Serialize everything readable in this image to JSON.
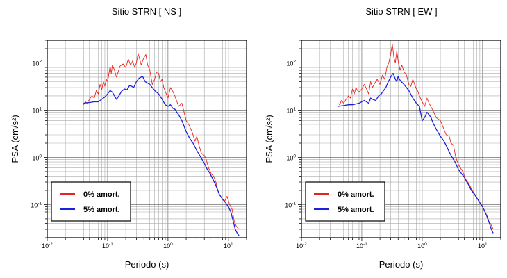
{
  "chart_data": [
    {
      "type": "line",
      "title": "Sitio STRN [ NS ]",
      "xlabel": "Periodo (s)",
      "ylabel": "PSA (cm/s²)",
      "x_scale": "log",
      "y_scale": "log",
      "xlim": [
        0.01,
        20
      ],
      "ylim": [
        0.02,
        300
      ],
      "x_ticks": [
        0.01,
        0.1,
        1,
        10
      ],
      "x_tick_labels": [
        {
          "base": "10",
          "exp": "-2"
        },
        {
          "base": "10",
          "exp": "-1"
        },
        {
          "base": "10",
          "exp": "0"
        },
        {
          "base": "10",
          "exp": "1"
        }
      ],
      "y_ticks": [
        0.1,
        1,
        10,
        100
      ],
      "y_tick_labels": [
        {
          "base": "10",
          "exp": "-1"
        },
        {
          "base": "10",
          "exp": "0"
        },
        {
          "base": "10",
          "exp": "1"
        },
        {
          "base": "10",
          "exp": "2"
        }
      ],
      "grid": true,
      "legend_position": "bottom-left",
      "series": [
        {
          "name": "0% amort.",
          "color": "#e8231f",
          "points": [
            [
              0.04,
              13
            ],
            [
              0.043,
              15
            ],
            [
              0.046,
              14
            ],
            [
              0.05,
              17
            ],
            [
              0.055,
              20
            ],
            [
              0.06,
              18
            ],
            [
              0.065,
              26
            ],
            [
              0.07,
              22
            ],
            [
              0.075,
              35
            ],
            [
              0.08,
              27
            ],
            [
              0.085,
              40
            ],
            [
              0.09,
              32
            ],
            [
              0.095,
              45
            ],
            [
              0.1,
              40
            ],
            [
              0.11,
              85
            ],
            [
              0.115,
              60
            ],
            [
              0.12,
              90
            ],
            [
              0.13,
              70
            ],
            [
              0.14,
              50
            ],
            [
              0.15,
              65
            ],
            [
              0.16,
              85
            ],
            [
              0.18,
              95
            ],
            [
              0.2,
              80
            ],
            [
              0.22,
              120
            ],
            [
              0.24,
              90
            ],
            [
              0.26,
              110
            ],
            [
              0.28,
              80
            ],
            [
              0.3,
              100
            ],
            [
              0.32,
              160
            ],
            [
              0.34,
              120
            ],
            [
              0.36,
              90
            ],
            [
              0.38,
              110
            ],
            [
              0.4,
              130
            ],
            [
              0.43,
              150
            ],
            [
              0.46,
              90
            ],
            [
              0.5,
              70
            ],
            [
              0.55,
              35
            ],
            [
              0.6,
              45
            ],
            [
              0.65,
              65
            ],
            [
              0.7,
              60
            ],
            [
              0.75,
              40
            ],
            [
              0.8,
              45
            ],
            [
              0.85,
              30
            ],
            [
              0.9,
              25
            ],
            [
              1.0,
              18
            ],
            [
              1.1,
              30
            ],
            [
              1.2,
              25
            ],
            [
              1.3,
              20
            ],
            [
              1.5,
              12
            ],
            [
              1.7,
              14
            ],
            [
              2.0,
              6
            ],
            [
              2.2,
              5
            ],
            [
              2.5,
              3.5
            ],
            [
              2.8,
              2.2
            ],
            [
              3.0,
              2.8
            ],
            [
              3.3,
              1.7
            ],
            [
              3.6,
              1.2
            ],
            [
              4.0,
              1.1
            ],
            [
              4.3,
              0.9
            ],
            [
              4.7,
              0.6
            ],
            [
              5.2,
              0.45
            ],
            [
              5.7,
              0.4
            ],
            [
              6.2,
              0.3
            ],
            [
              6.7,
              0.2
            ],
            [
              7.2,
              0.16
            ],
            [
              8.0,
              0.13
            ],
            [
              8.7,
              0.12
            ],
            [
              9.5,
              0.15
            ],
            [
              10.5,
              0.1
            ],
            [
              11.5,
              0.08
            ],
            [
              12.5,
              0.045
            ],
            [
              13.5,
              0.035
            ],
            [
              15,
              0.03
            ]
          ]
        },
        {
          "name": "5% amort.",
          "color": "#1c20d8",
          "points": [
            [
              0.04,
              14
            ],
            [
              0.05,
              14.5
            ],
            [
              0.06,
              15
            ],
            [
              0.07,
              15
            ],
            [
              0.08,
              17
            ],
            [
              0.09,
              19
            ],
            [
              0.1,
              22
            ],
            [
              0.11,
              26
            ],
            [
              0.12,
              24
            ],
            [
              0.13,
              20
            ],
            [
              0.14,
              17
            ],
            [
              0.15,
              19
            ],
            [
              0.17,
              25
            ],
            [
              0.19,
              28
            ],
            [
              0.21,
              27
            ],
            [
              0.23,
              33
            ],
            [
              0.25,
              32
            ],
            [
              0.27,
              30
            ],
            [
              0.3,
              40
            ],
            [
              0.33,
              47
            ],
            [
              0.36,
              50
            ],
            [
              0.38,
              52
            ],
            [
              0.4,
              45
            ],
            [
              0.42,
              40
            ],
            [
              0.45,
              38
            ],
            [
              0.5,
              35
            ],
            [
              0.55,
              30
            ],
            [
              0.6,
              26
            ],
            [
              0.7,
              22
            ],
            [
              0.8,
              17
            ],
            [
              0.9,
              13
            ],
            [
              1.0,
              12
            ],
            [
              1.1,
              13
            ],
            [
              1.2,
              11
            ],
            [
              1.3,
              10.5
            ],
            [
              1.4,
              9
            ],
            [
              1.5,
              8
            ],
            [
              1.7,
              6
            ],
            [
              2.0,
              3.5
            ],
            [
              2.3,
              2.5
            ],
            [
              2.6,
              2
            ],
            [
              3.0,
              1.4
            ],
            [
              3.5,
              1.0
            ],
            [
              4.0,
              0.75
            ],
            [
              4.5,
              0.55
            ],
            [
              5.0,
              0.45
            ],
            [
              5.5,
              0.35
            ],
            [
              6.0,
              0.28
            ],
            [
              6.5,
              0.22
            ],
            [
              7.0,
              0.17
            ],
            [
              8.0,
              0.13
            ],
            [
              9.0,
              0.11
            ],
            [
              10.0,
              0.09
            ],
            [
              11.0,
              0.07
            ],
            [
              12.0,
              0.045
            ],
            [
              13.0,
              0.03
            ],
            [
              14.0,
              0.025
            ],
            [
              15,
              0.022
            ]
          ]
        }
      ]
    },
    {
      "type": "line",
      "title": "Sitio STRN [ EW ]",
      "xlabel": "Periodo (s)",
      "ylabel": "PSA (cm/s²)",
      "x_scale": "log",
      "y_scale": "log",
      "xlim": [
        0.01,
        20
      ],
      "ylim": [
        0.02,
        300
      ],
      "x_ticks": [
        0.01,
        0.1,
        1,
        10
      ],
      "x_tick_labels": [
        {
          "base": "10",
          "exp": "-2"
        },
        {
          "base": "10",
          "exp": "-1"
        },
        {
          "base": "10",
          "exp": "0"
        },
        {
          "base": "10",
          "exp": "1"
        }
      ],
      "y_ticks": [
        0.1,
        1,
        10,
        100
      ],
      "y_tick_labels": [
        {
          "base": "10",
          "exp": "-1"
        },
        {
          "base": "10",
          "exp": "0"
        },
        {
          "base": "10",
          "exp": "1"
        },
        {
          "base": "10",
          "exp": "2"
        }
      ],
      "grid": true,
      "legend_position": "bottom-left",
      "series": [
        {
          "name": "0% amort.",
          "color": "#e8231f",
          "points": [
            [
              0.04,
              14
            ],
            [
              0.043,
              13
            ],
            [
              0.046,
              16
            ],
            [
              0.05,
              14
            ],
            [
              0.055,
              17
            ],
            [
              0.06,
              20
            ],
            [
              0.065,
              18
            ],
            [
              0.07,
              28
            ],
            [
              0.075,
              22
            ],
            [
              0.08,
              30
            ],
            [
              0.085,
              26
            ],
            [
              0.09,
              24
            ],
            [
              0.1,
              28
            ],
            [
              0.11,
              35
            ],
            [
              0.12,
              28
            ],
            [
              0.13,
              22
            ],
            [
              0.14,
              40
            ],
            [
              0.15,
              30
            ],
            [
              0.16,
              35
            ],
            [
              0.18,
              45
            ],
            [
              0.2,
              35
            ],
            [
              0.22,
              55
            ],
            [
              0.24,
              45
            ],
            [
              0.26,
              80
            ],
            [
              0.28,
              100
            ],
            [
              0.3,
              150
            ],
            [
              0.32,
              250
            ],
            [
              0.34,
              130
            ],
            [
              0.36,
              100
            ],
            [
              0.38,
              180
            ],
            [
              0.4,
              110
            ],
            [
              0.43,
              70
            ],
            [
              0.46,
              90
            ],
            [
              0.5,
              65
            ],
            [
              0.55,
              55
            ],
            [
              0.6,
              35
            ],
            [
              0.65,
              32
            ],
            [
              0.7,
              45
            ],
            [
              0.75,
              35
            ],
            [
              0.8,
              28
            ],
            [
              0.85,
              25
            ],
            [
              0.9,
              20
            ],
            [
              1.0,
              15
            ],
            [
              1.1,
              12
            ],
            [
              1.2,
              18
            ],
            [
              1.3,
              14
            ],
            [
              1.5,
              10
            ],
            [
              1.7,
              7
            ],
            [
              2.0,
              6
            ],
            [
              2.2,
              4.5
            ],
            [
              2.5,
              3
            ],
            [
              2.8,
              2.8
            ],
            [
              3.0,
              2.0
            ],
            [
              3.3,
              1.8
            ],
            [
              3.6,
              1.0
            ],
            [
              4.0,
              0.7
            ],
            [
              4.3,
              0.6
            ],
            [
              4.7,
              0.5
            ],
            [
              5.2,
              0.35
            ],
            [
              5.7,
              0.3
            ],
            [
              6.2,
              0.25
            ],
            [
              6.7,
              0.2
            ],
            [
              7.2,
              0.18
            ],
            [
              8.0,
              0.14
            ],
            [
              8.7,
              0.12
            ],
            [
              9.5,
              0.1
            ],
            [
              10.5,
              0.08
            ],
            [
              11.5,
              0.06
            ],
            [
              12.5,
              0.045
            ],
            [
              13.5,
              0.04
            ],
            [
              15,
              0.03
            ]
          ]
        },
        {
          "name": "5% amort.",
          "color": "#1c20d8",
          "points": [
            [
              0.04,
              12
            ],
            [
              0.05,
              12.5
            ],
            [
              0.06,
              13
            ],
            [
              0.07,
              13
            ],
            [
              0.08,
              13.5
            ],
            [
              0.09,
              14
            ],
            [
              0.1,
              15
            ],
            [
              0.11,
              16
            ],
            [
              0.12,
              15
            ],
            [
              0.13,
              14
            ],
            [
              0.14,
              18
            ],
            [
              0.15,
              17
            ],
            [
              0.17,
              16
            ],
            [
              0.19,
              20
            ],
            [
              0.21,
              22
            ],
            [
              0.23,
              26
            ],
            [
              0.25,
              30
            ],
            [
              0.27,
              38
            ],
            [
              0.3,
              50
            ],
            [
              0.33,
              60
            ],
            [
              0.36,
              45
            ],
            [
              0.38,
              40
            ],
            [
              0.4,
              52
            ],
            [
              0.42,
              45
            ],
            [
              0.45,
              40
            ],
            [
              0.5,
              35
            ],
            [
              0.55,
              30
            ],
            [
              0.6,
              26
            ],
            [
              0.7,
              18
            ],
            [
              0.8,
              14
            ],
            [
              0.9,
              12
            ],
            [
              1.0,
              6
            ],
            [
              1.1,
              7
            ],
            [
              1.2,
              9
            ],
            [
              1.3,
              8
            ],
            [
              1.4,
              7
            ],
            [
              1.5,
              5.5
            ],
            [
              1.7,
              4
            ],
            [
              2.0,
              2.8
            ],
            [
              2.3,
              2.2
            ],
            [
              2.6,
              1.6
            ],
            [
              3.0,
              1.1
            ],
            [
              3.5,
              0.8
            ],
            [
              4.0,
              0.55
            ],
            [
              4.5,
              0.45
            ],
            [
              5.0,
              0.38
            ],
            [
              5.5,
              0.3
            ],
            [
              6.0,
              0.25
            ],
            [
              6.5,
              0.2
            ],
            [
              7.0,
              0.18
            ],
            [
              8.0,
              0.14
            ],
            [
              9.0,
              0.11
            ],
            [
              10.0,
              0.09
            ],
            [
              11.0,
              0.07
            ],
            [
              12.0,
              0.055
            ],
            [
              13.0,
              0.04
            ],
            [
              14.0,
              0.03
            ],
            [
              15,
              0.025
            ]
          ]
        }
      ]
    }
  ]
}
